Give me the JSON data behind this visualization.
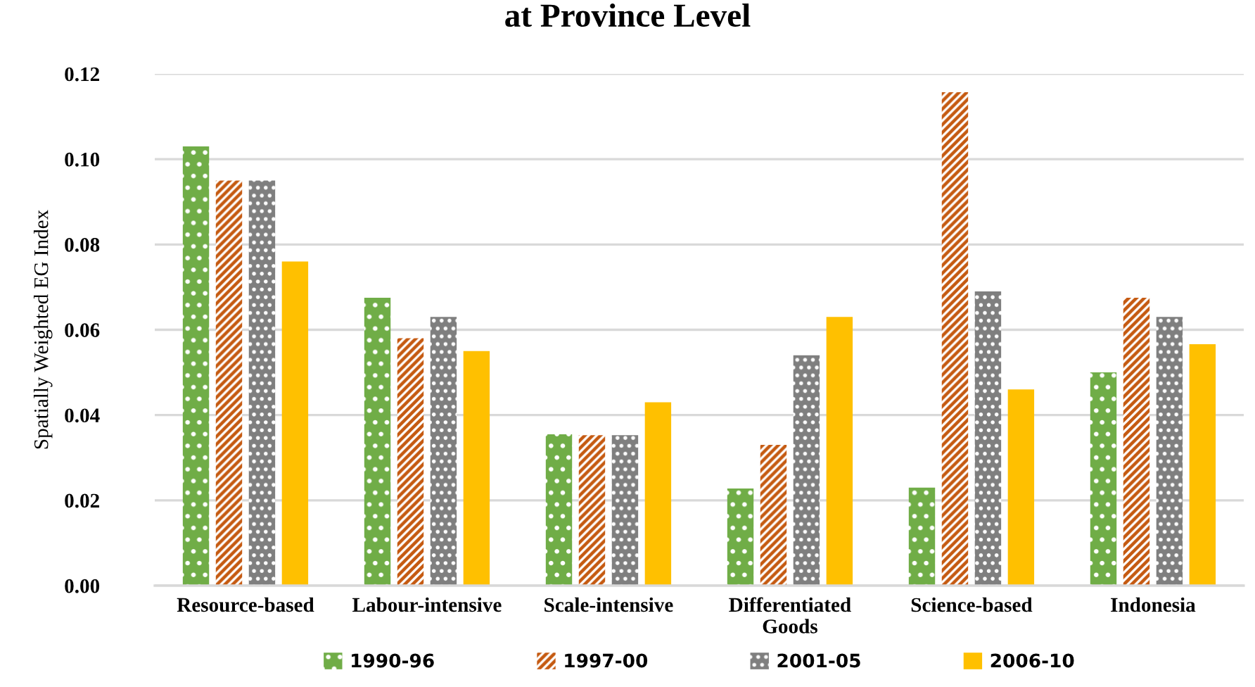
{
  "chart_data": {
    "type": "bar",
    "title": "at Province Level",
    "ylabel": "Spatially Weighted EG Index",
    "categories": [
      "Resource-based",
      "Labour-intensive",
      "Scale-intensive",
      "Differentiated\nGoods",
      "Science-based",
      "Indonesia"
    ],
    "series": [
      {
        "name": "1990-96",
        "color": "#70ad47",
        "values": [
          0.103,
          0.0675,
          0.0355,
          0.0228,
          0.023,
          0.05
        ]
      },
      {
        "name": "1997-00",
        "color": "#c55a11",
        "values": [
          0.095,
          0.058,
          0.0353,
          0.033,
          0.1157,
          0.0675
        ]
      },
      {
        "name": "2001-05",
        "color": "#7f7f7f",
        "values": [
          0.095,
          0.063,
          0.0353,
          0.054,
          0.069,
          0.063
        ]
      },
      {
        "name": "2006-10",
        "color": "#ffc000",
        "values": [
          0.076,
          0.055,
          0.043,
          0.063,
          0.046,
          0.0566
        ]
      }
    ],
    "ylim": [
      0,
      0.12
    ],
    "yticks": [
      {
        "value": 0,
        "label": "0.00"
      },
      {
        "value": 0.02,
        "label": "0.02"
      },
      {
        "value": 0.04,
        "label": "0.04"
      },
      {
        "value": 0.06,
        "label": "0.06"
      },
      {
        "value": 0.08,
        "label": "0.08"
      },
      {
        "value": 0.1,
        "label": "0.10"
      },
      {
        "value": 0.12,
        "label": "0.12"
      }
    ],
    "grid": "y",
    "legend": "bottom"
  }
}
